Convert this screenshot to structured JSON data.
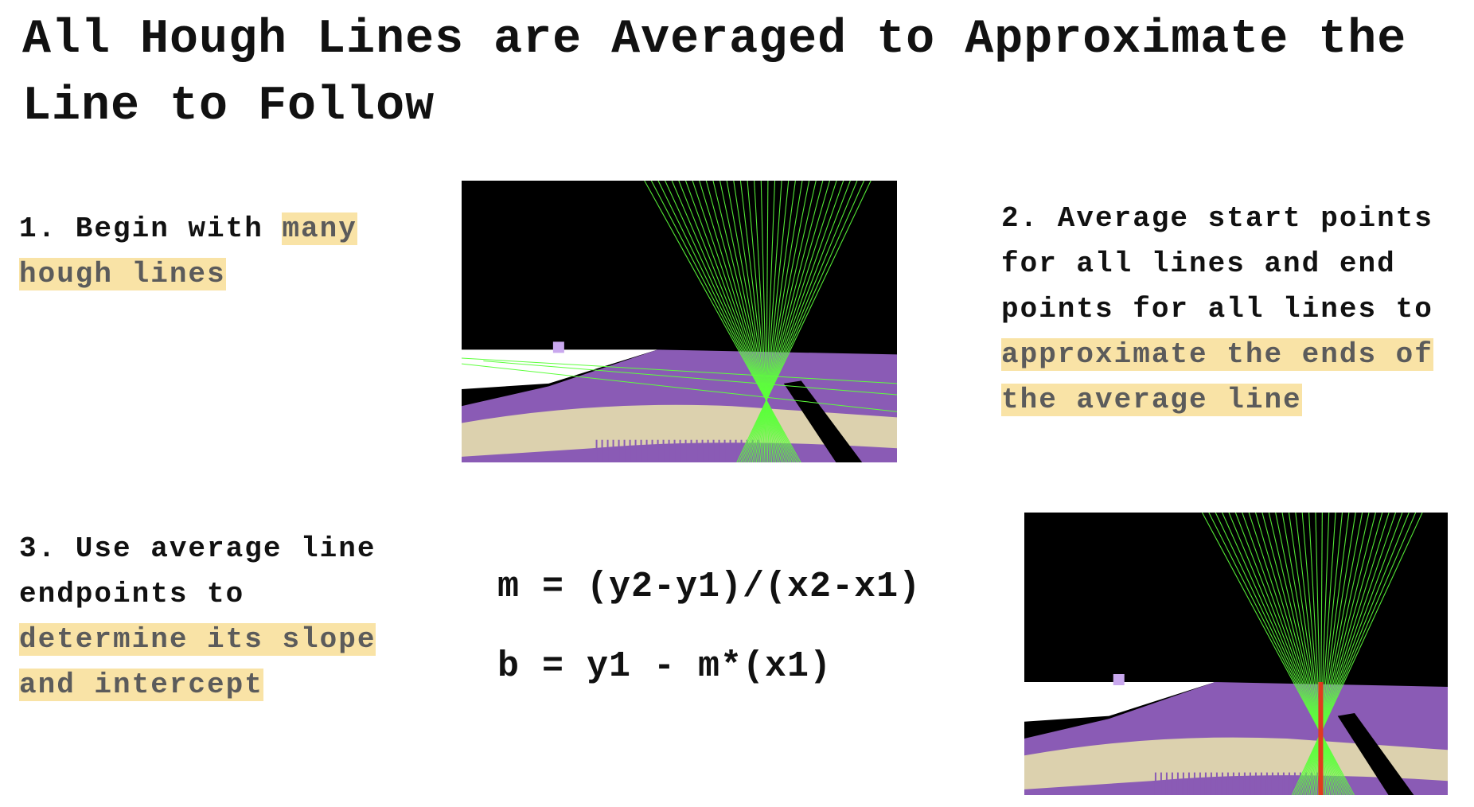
{
  "slide": {
    "title": "All Hough Lines are Averaged to Approximate the Line to Follow",
    "step1": {
      "plain": "1. Begin with ",
      "highlight": "many hough lines"
    },
    "step2": {
      "plain": "2. Average start points for all lines and end points for all lines to ",
      "highlight": "approximate the ends of the average line"
    },
    "step3": {
      "plain": "3. Use average line endpoints to ",
      "highlight": "determine its slope and intercept"
    },
    "formula_slope": "m = (y2-y1)/(x2-x1)",
    "formula_intercept": "b = y1 - m*(x1)"
  },
  "colors": {
    "highlight": "#f9e3a6",
    "hough_line": "#5dff3c",
    "average_line": "#e03a1e",
    "road_purple": "#8a5bb5",
    "road_beige": "#dcd1ae",
    "sky": "#000000"
  },
  "images": [
    {
      "name": "hough-lines-image",
      "shows_average_line": false
    },
    {
      "name": "average-line-image",
      "shows_average_line": true
    }
  ]
}
